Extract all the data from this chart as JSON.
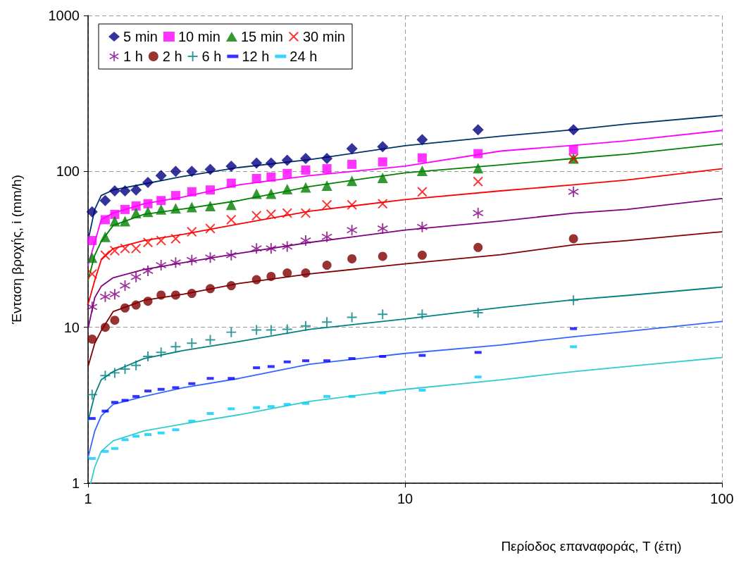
{
  "chart_data": {
    "type": "scatter",
    "xlabel": "Περίοδος επαναφοράς, T (έτη)",
    "ylabel": "Ένταση βροχής, i (mm/h)",
    "log": "xy",
    "grid": true,
    "legend": "top left",
    "xlim": [
      1,
      100
    ],
    "xticks": [
      1,
      10,
      100
    ],
    "ylim": [
      1,
      1000
    ],
    "yticks": [
      1,
      10,
      100,
      1000
    ],
    "x": [
      34,
      17,
      11.33,
      8.5,
      6.8,
      5.67,
      4.86,
      4.25,
      3.78,
      3.4,
      2.83,
      2.43,
      2.125,
      1.89,
      1.7,
      1.545,
      1.417,
      1.308,
      1.214,
      1.133,
      1.03
    ],
    "series": [
      {
        "name": "5 min",
        "color": "#000080",
        "marker": "diamond",
        "values": [
          185,
          185,
          160,
          144,
          140,
          121,
          121,
          118,
          113,
          113,
          108,
          103,
          100,
          100,
          94,
          85,
          76,
          75,
          75,
          65,
          55
        ]
      },
      {
        "name": "10 min",
        "color": "#ff00ff",
        "marker": "square",
        "values": [
          138,
          130,
          122,
          115,
          111,
          104,
          102,
          97,
          92,
          90,
          84,
          76,
          74,
          70,
          65,
          62,
          60,
          57,
          53,
          49,
          36
        ]
      },
      {
        "name": "15 min",
        "color": "#008000",
        "marker": "triangle",
        "values": [
          121,
          105,
          101,
          91,
          87,
          81,
          79,
          77,
          72,
          72,
          61,
          60,
          59,
          58,
          57,
          55,
          54,
          48,
          48,
          38,
          28
        ]
      },
      {
        "name": "30 min",
        "color": "#ff0000",
        "marker": "cross",
        "values": [
          121,
          86,
          74,
          62,
          61,
          61,
          54,
          54,
          53,
          52,
          49,
          43,
          41,
          37,
          36,
          35,
          32,
          32,
          31,
          29,
          22
        ]
      },
      {
        "name": "1 h",
        "color": "#800080",
        "marker": "star",
        "values": [
          74,
          54,
          44,
          43,
          42,
          38,
          36,
          33,
          32,
          32,
          29,
          28,
          27,
          26,
          25,
          23,
          21,
          18.5,
          16.3,
          15.7,
          13.5
        ]
      },
      {
        "name": "2 h",
        "color": "#800000",
        "marker": "circle",
        "values": [
          37,
          32.5,
          29,
          28.5,
          27.5,
          25,
          22.3,
          22.3,
          21.2,
          20.2,
          18.5,
          17.7,
          16.5,
          16.1,
          16.1,
          14.7,
          13.9,
          13.3,
          11.1,
          10,
          8.4
        ]
      },
      {
        "name": "6 h",
        "color": "#008080",
        "marker": "plus",
        "values": [
          14.9,
          12.4,
          12.1,
          12.1,
          11.6,
          10.8,
          10.2,
          9.7,
          9.6,
          9.6,
          9.3,
          8.3,
          7.9,
          7.5,
          6.9,
          6.5,
          5.7,
          5.4,
          5.1,
          4.9,
          3.7
        ]
      },
      {
        "name": "12 h",
        "color": "#0000ff",
        "values": [
          9.8,
          6.9,
          6.6,
          6.5,
          6.3,
          6.1,
          6.1,
          6.0,
          5.6,
          5.5,
          4.7,
          4.7,
          4.35,
          4.1,
          4.0,
          3.9,
          3.6,
          3.4,
          3.3,
          2.9,
          2.6
        ]
      },
      {
        "name": "24 h",
        "color": "#00ccff",
        "values": [
          7.5,
          4.8,
          3.95,
          3.8,
          3.6,
          3.6,
          3.25,
          3.2,
          3.1,
          3.05,
          3.0,
          2.8,
          2.5,
          2.2,
          2.1,
          2.05,
          2.0,
          1.9,
          1.67,
          1.6,
          1.44
        ]
      },
      {
        "type": "line",
        "color": "#003366",
        "marker": "none",
        "x": [
          1,
          1.05,
          1.1,
          1.2,
          1.5,
          2,
          3,
          5,
          10,
          20,
          34,
          50,
          100
        ],
        "values": [
          36,
          57,
          70,
          76,
          83,
          93,
          106,
          119,
          146,
          168,
          185,
          201,
          228
        ]
      },
      {
        "type": "line",
        "color": "#ff00ff",
        "marker": "none",
        "x": [
          1,
          1.05,
          1.1,
          1.2,
          1.5,
          2,
          3,
          5,
          10,
          20,
          34,
          50,
          100
        ],
        "values": [
          25,
          35,
          49,
          54,
          62,
          68.5,
          82,
          94,
          108,
          135,
          147,
          157,
          183
        ]
      },
      {
        "type": "line",
        "color": "#008000",
        "marker": "none",
        "x": [
          1,
          1.05,
          1.1,
          1.2,
          1.5,
          2,
          3,
          5,
          10,
          20,
          34,
          50,
          100
        ],
        "values": [
          20,
          29,
          35.5,
          45,
          53,
          57.5,
          65,
          80,
          98,
          110,
          121,
          129,
          150
        ]
      },
      {
        "type": "line",
        "color": "#ff0000",
        "marker": "none",
        "x": [
          1,
          1.05,
          1.1,
          1.2,
          1.5,
          2,
          3,
          5,
          10,
          20,
          34,
          50,
          100
        ],
        "values": [
          14,
          20,
          27,
          32,
          36,
          39.5,
          46,
          55.5,
          66,
          75,
          82,
          88,
          104
        ]
      },
      {
        "type": "line",
        "color": "#800080",
        "marker": "none",
        "x": [
          1,
          1.05,
          1.1,
          1.2,
          1.5,
          2,
          3,
          5,
          10,
          20,
          34,
          50,
          100
        ],
        "values": [
          9.8,
          15.5,
          18.3,
          20.8,
          23.5,
          26,
          29.8,
          35,
          42,
          48,
          54,
          57,
          67
        ]
      },
      {
        "type": "line",
        "color": "#800000",
        "marker": "none",
        "x": [
          1,
          1.05,
          1.1,
          1.2,
          1.5,
          2,
          3,
          5,
          10,
          20,
          34,
          50,
          100
        ],
        "values": [
          5.6,
          7.9,
          9.5,
          12.6,
          14.9,
          16.3,
          19.1,
          22,
          25.5,
          29.2,
          33.8,
          36,
          41
        ]
      },
      {
        "type": "line",
        "color": "#008080",
        "marker": "none",
        "x": [
          1,
          1.05,
          1.1,
          1.2,
          1.5,
          2,
          3,
          5,
          10,
          20,
          34,
          50,
          100
        ],
        "values": [
          2.5,
          3.7,
          4.6,
          5.2,
          6.3,
          7.1,
          8.1,
          9.7,
          11.3,
          13.4,
          15,
          16,
          18.1
        ]
      },
      {
        "type": "line",
        "color": "#3366ff",
        "marker": "none",
        "x": [
          1,
          1.05,
          1.1,
          1.2,
          1.5,
          2,
          3,
          5,
          10,
          20,
          34,
          50,
          100
        ],
        "values": [
          1.46,
          2.16,
          2.7,
          3.2,
          3.6,
          4.1,
          4.7,
          5.8,
          6.8,
          7.7,
          8.7,
          9.4,
          10.9
        ]
      },
      {
        "type": "line",
        "color": "#33cccc",
        "marker": "none",
        "x": [
          1.02,
          1.05,
          1.1,
          1.2,
          1.5,
          2,
          3,
          5,
          10,
          20,
          34,
          50,
          100
        ],
        "values": [
          1.0,
          1.27,
          1.6,
          1.87,
          2.16,
          2.4,
          2.75,
          3.35,
          4.0,
          4.6,
          5.2,
          5.6,
          6.4
        ]
      }
    ]
  }
}
